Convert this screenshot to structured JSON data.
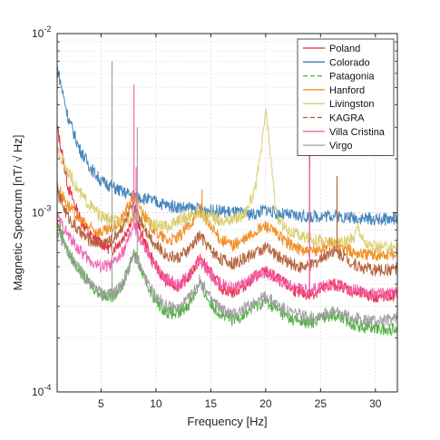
{
  "chart_data": {
    "type": "line",
    "xlabel": "Frequency [Hz]",
    "ylabel": "Magnetic Spectrum [nT/    √ Hz]",
    "xlim": [
      1,
      32
    ],
    "ylim": [
      0.0001,
      0.01
    ],
    "yscale": "log",
    "x_ticks": [
      5,
      10,
      15,
      20,
      25,
      30
    ],
    "y_ticks": [
      {
        "value": 0.0001,
        "base": "10",
        "exp": "-4"
      },
      {
        "value": 0.001,
        "base": "10",
        "exp": "-3"
      },
      {
        "value": 0.01,
        "base": "10",
        "exp": "-2"
      }
    ],
    "grid": true,
    "legend_position": "top-right",
    "series": [
      {
        "name": "Poland",
        "color": "#e8263a",
        "dash": "solid",
        "points": [
          [
            1,
            0.003
          ],
          [
            2,
            0.0014
          ],
          [
            3,
            0.00095
          ],
          [
            4,
            0.00075
          ],
          [
            5,
            0.00068
          ],
          [
            6,
            0.00062
          ],
          [
            7,
            0.00072
          ],
          [
            8,
            0.00098
          ],
          [
            9,
            0.00068
          ],
          [
            10,
            0.0005
          ],
          [
            11,
            0.00041
          ],
          [
            12,
            0.00039
          ],
          [
            13,
            0.00044
          ],
          [
            14,
            0.00056
          ],
          [
            15,
            0.00046
          ],
          [
            16,
            0.00038
          ],
          [
            17,
            0.00036
          ],
          [
            18,
            0.00039
          ],
          [
            19,
            0.00044
          ],
          [
            20,
            0.00047
          ],
          [
            21,
            0.00043
          ],
          [
            22,
            0.00039
          ],
          [
            23,
            0.00036
          ],
          [
            24,
            0.00035
          ],
          [
            25,
            0.00037
          ],
          [
            26,
            0.0004
          ],
          [
            27,
            0.00039
          ],
          [
            28,
            0.00036
          ],
          [
            29,
            0.00035
          ],
          [
            30,
            0.00034
          ],
          [
            31,
            0.00034
          ],
          [
            32,
            0.00035
          ]
        ],
        "spikes": [
          [
            24,
            0.0035
          ]
        ]
      },
      {
        "name": "Colorado",
        "color": "#3d7fb8",
        "dash": "solid",
        "points": [
          [
            1,
            0.0065
          ],
          [
            2,
            0.0034
          ],
          [
            3,
            0.0023
          ],
          [
            4,
            0.0018
          ],
          [
            5,
            0.0015
          ],
          [
            6,
            0.0014
          ],
          [
            7,
            0.0013
          ],
          [
            8,
            0.00125
          ],
          [
            9,
            0.0012
          ],
          [
            10,
            0.00115
          ],
          [
            11,
            0.0011
          ],
          [
            12,
            0.00108
          ],
          [
            13,
            0.00106
          ],
          [
            14,
            0.00105
          ],
          [
            15,
            0.00103
          ],
          [
            16,
            0.00102
          ],
          [
            17,
            0.00101
          ],
          [
            18,
            0.00099
          ],
          [
            19,
            0.00098
          ],
          [
            20,
            0.00105
          ],
          [
            21,
            0.00099
          ],
          [
            22,
            0.00097
          ],
          [
            23,
            0.00096
          ],
          [
            24,
            0.00095
          ],
          [
            25,
            0.00096
          ],
          [
            26,
            0.00097
          ],
          [
            27,
            0.00095
          ],
          [
            28,
            0.00094
          ],
          [
            29,
            0.00093
          ],
          [
            30,
            0.00092
          ],
          [
            31,
            0.00092
          ],
          [
            32,
            0.00093
          ]
        ],
        "spikes": []
      },
      {
        "name": "Patagonia",
        "color": "#4fae3f",
        "dash": "dash",
        "points": [
          [
            1,
            0.0009
          ],
          [
            2,
            0.0006
          ],
          [
            3,
            0.00048
          ],
          [
            4,
            0.0004
          ],
          [
            5,
            0.00035
          ],
          [
            6,
            0.00034
          ],
          [
            7,
            0.0004
          ],
          [
            8,
            0.00062
          ],
          [
            9,
            0.00042
          ],
          [
            10,
            0.00032
          ],
          [
            11,
            0.00028
          ],
          [
            12,
            0.00027
          ],
          [
            13,
            0.00031
          ],
          [
            14,
            0.0004
          ],
          [
            15,
            0.00031
          ],
          [
            16,
            0.00027
          ],
          [
            17,
            0.00025
          ],
          [
            18,
            0.00027
          ],
          [
            19,
            0.0003
          ],
          [
            20,
            0.00032
          ],
          [
            21,
            0.00029
          ],
          [
            22,
            0.00026
          ],
          [
            23,
            0.00025
          ],
          [
            24,
            0.00024
          ],
          [
            25,
            0.00026
          ],
          [
            26,
            0.00027
          ],
          [
            27,
            0.00026
          ],
          [
            28,
            0.00024
          ],
          [
            29,
            0.00023
          ],
          [
            30,
            0.00023
          ],
          [
            31,
            0.00022
          ],
          [
            32,
            0.00023
          ]
        ],
        "spikes": []
      },
      {
        "name": "Hanford",
        "color": "#f08a1c",
        "dash": "solid",
        "points": [
          [
            1,
            0.0014
          ],
          [
            2,
            0.0011
          ],
          [
            3,
            0.00092
          ],
          [
            4,
            0.00082
          ],
          [
            5,
            0.00078
          ],
          [
            6,
            0.0008
          ],
          [
            7,
            0.00095
          ],
          [
            8,
            0.00125
          ],
          [
            9,
            0.00095
          ],
          [
            10,
            0.00078
          ],
          [
            11,
            0.0007
          ],
          [
            12,
            0.00072
          ],
          [
            13,
            0.00085
          ],
          [
            14,
            0.00105
          ],
          [
            15,
            0.00082
          ],
          [
            16,
            0.0007
          ],
          [
            17,
            0.00066
          ],
          [
            18,
            0.0007
          ],
          [
            19,
            0.00078
          ],
          [
            20,
            0.00085
          ],
          [
            21,
            0.00076
          ],
          [
            22,
            0.00068
          ],
          [
            23,
            0.00063
          ],
          [
            24,
            0.0006
          ],
          [
            25,
            0.00063
          ],
          [
            26,
            0.00068
          ],
          [
            27,
            0.00064
          ],
          [
            28,
            0.0006
          ],
          [
            29,
            0.00059
          ],
          [
            30,
            0.00058
          ],
          [
            31,
            0.00058
          ],
          [
            32,
            0.00059
          ]
        ],
        "spikes": [
          [
            14.2,
            0.00135
          ]
        ]
      },
      {
        "name": "Livingston",
        "color": "#d9cc6c",
        "dash": "solid",
        "points": [
          [
            1,
            0.0022
          ],
          [
            2,
            0.0017
          ],
          [
            3,
            0.0013
          ],
          [
            4,
            0.0011
          ],
          [
            5,
            0.00095
          ],
          [
            6,
            0.0009
          ],
          [
            7,
            0.0009
          ],
          [
            8,
            0.00095
          ],
          [
            9,
            0.00088
          ],
          [
            10,
            0.00085
          ],
          [
            11,
            0.00083
          ],
          [
            12,
            0.0009
          ],
          [
            13,
            0.00095
          ],
          [
            14,
            0.001
          ],
          [
            15,
            0.00095
          ],
          [
            16,
            0.0009
          ],
          [
            17,
            0.00092
          ],
          [
            18,
            0.00098
          ],
          [
            19,
            0.0013
          ],
          [
            19.6,
            0.0022
          ],
          [
            20,
            0.0038
          ],
          [
            20.4,
            0.0022
          ],
          [
            21,
            0.00095
          ],
          [
            22,
            0.0008
          ],
          [
            23,
            0.00075
          ],
          [
            24,
            0.00072
          ],
          [
            25,
            0.0007
          ],
          [
            26,
            0.00068
          ],
          [
            27,
            0.00068
          ],
          [
            28,
            0.00072
          ],
          [
            28.4,
            0.00085
          ],
          [
            29,
            0.00068
          ],
          [
            30,
            0.00064
          ],
          [
            31,
            0.00064
          ],
          [
            32,
            0.00065
          ]
        ],
        "spikes": []
      },
      {
        "name": "KAGRA",
        "color": "#b25e35",
        "dash": "dash",
        "points": [
          [
            1,
            0.0013
          ],
          [
            2,
            0.00095
          ],
          [
            3,
            0.00078
          ],
          [
            4,
            0.0007
          ],
          [
            5,
            0.00068
          ],
          [
            6,
            0.0007
          ],
          [
            7,
            0.00085
          ],
          [
            8,
            0.0011
          ],
          [
            9,
            0.00082
          ],
          [
            10,
            0.00066
          ],
          [
            11,
            0.00058
          ],
          [
            12,
            0.00056
          ],
          [
            13,
            0.00062
          ],
          [
            14,
            0.00075
          ],
          [
            15,
            0.00062
          ],
          [
            16,
            0.00055
          ],
          [
            17,
            0.00052
          ],
          [
            18,
            0.00055
          ],
          [
            19,
            0.0006
          ],
          [
            20,
            0.00064
          ],
          [
            21,
            0.00058
          ],
          [
            22,
            0.00053
          ],
          [
            23,
            0.0005
          ],
          [
            24,
            0.0005
          ],
          [
            25,
            0.00055
          ],
          [
            26,
            0.00062
          ],
          [
            27,
            0.00058
          ],
          [
            28,
            0.00052
          ],
          [
            29,
            0.00049
          ],
          [
            30,
            0.00048
          ],
          [
            31,
            0.00048
          ],
          [
            32,
            0.00049
          ]
        ],
        "spikes": [
          [
            26.5,
            0.0016
          ]
        ]
      },
      {
        "name": "Villa Cristina",
        "color": "#f25fae",
        "dash": "solid",
        "points": [
          [
            1,
            0.00095
          ],
          [
            2,
            0.00075
          ],
          [
            3,
            0.00062
          ],
          [
            4,
            0.00054
          ],
          [
            5,
            0.0005
          ],
          [
            6,
            0.00051
          ],
          [
            7,
            0.0006
          ],
          [
            8,
            0.00085
          ],
          [
            9,
            0.00062
          ],
          [
            10,
            0.0005
          ],
          [
            11,
            0.00043
          ],
          [
            12,
            0.0004
          ],
          [
            13,
            0.00044
          ],
          [
            14,
            0.00054
          ],
          [
            15,
            0.00045
          ],
          [
            16,
            0.0004
          ],
          [
            17,
            0.00038
          ],
          [
            18,
            0.0004
          ],
          [
            19,
            0.00044
          ],
          [
            20,
            0.00047
          ],
          [
            21,
            0.00043
          ],
          [
            22,
            0.0004
          ],
          [
            23,
            0.00038
          ],
          [
            24,
            0.00037
          ],
          [
            25,
            0.00038
          ],
          [
            26,
            0.0004
          ],
          [
            27,
            0.00039
          ],
          [
            28,
            0.00037
          ],
          [
            29,
            0.00036
          ],
          [
            30,
            0.00035
          ],
          [
            31,
            0.00035
          ],
          [
            32,
            0.00036
          ]
        ],
        "spikes": [
          [
            8.0,
            0.0052
          ],
          [
            8.2,
            0.0018
          ],
          [
            24.0,
            0.0018
          ]
        ]
      },
      {
        "name": "Virgo",
        "color": "#9e9e9e",
        "dash": "solid",
        "points": [
          [
            1,
            0.0008
          ],
          [
            2,
            0.0006
          ],
          [
            3,
            0.00048
          ],
          [
            4,
            0.0004
          ],
          [
            5,
            0.00036
          ],
          [
            6,
            0.00035
          ],
          [
            7,
            0.0004
          ],
          [
            8,
            0.00058
          ],
          [
            9,
            0.00043
          ],
          [
            10,
            0.00034
          ],
          [
            11,
            0.0003
          ],
          [
            12,
            0.00029
          ],
          [
            13,
            0.00033
          ],
          [
            14,
            0.00042
          ],
          [
            15,
            0.00033
          ],
          [
            16,
            0.00029
          ],
          [
            17,
            0.00027
          ],
          [
            18,
            0.00029
          ],
          [
            19,
            0.00032
          ],
          [
            20,
            0.00034
          ],
          [
            21,
            0.00031
          ],
          [
            22,
            0.00028
          ],
          [
            23,
            0.00027
          ],
          [
            24,
            0.00026
          ],
          [
            25,
            0.00027
          ],
          [
            26,
            0.00028
          ],
          [
            27,
            0.00027
          ],
          [
            28,
            0.00026
          ],
          [
            29,
            0.00025
          ],
          [
            30,
            0.00025
          ],
          [
            31,
            0.00025
          ],
          [
            32,
            0.00026
          ]
        ],
        "spikes": [
          [
            6.0,
            0.007
          ],
          [
            8.3,
            0.003
          ]
        ]
      }
    ]
  }
}
